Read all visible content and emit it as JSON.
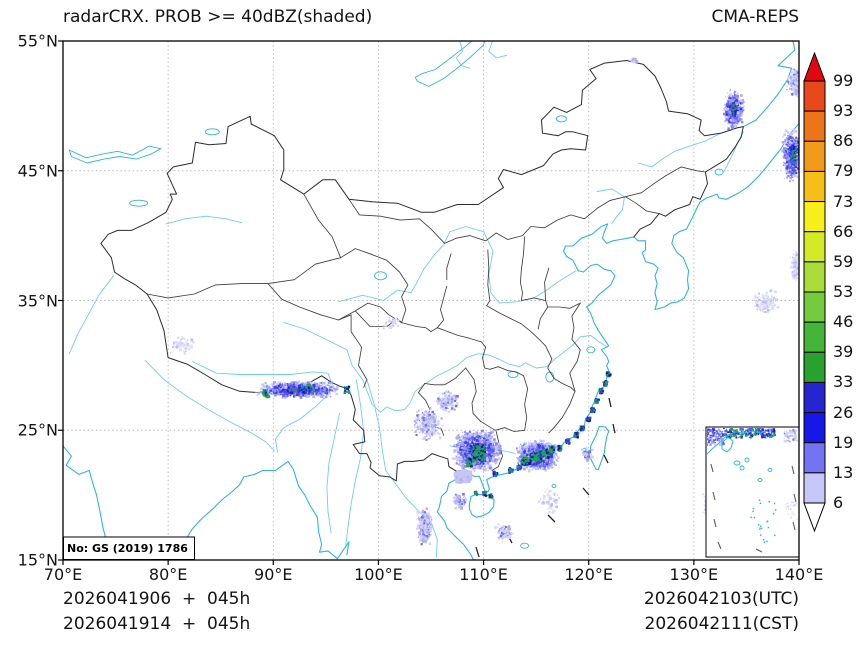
{
  "header": {
    "title": "radarCRX. PROB >= 40dBZ(shaded)",
    "model": "CMA-REPS"
  },
  "axes": {
    "x_ticks": [
      {
        "label": "70°E",
        "lon": 70
      },
      {
        "label": "80°E",
        "lon": 80
      },
      {
        "label": "90°E",
        "lon": 90
      },
      {
        "label": "100°E",
        "lon": 100
      },
      {
        "label": "110°E",
        "lon": 110
      },
      {
        "label": "120°E",
        "lon": 120
      },
      {
        "label": "130°E",
        "lon": 130
      },
      {
        "label": "140°E",
        "lon": 140
      }
    ],
    "y_ticks": [
      {
        "label": "15°N",
        "lat": 15
      },
      {
        "label": "25°N",
        "lat": 25
      },
      {
        "label": "35°N",
        "lat": 35
      },
      {
        "label": "45°N",
        "lat": 45
      },
      {
        "label": "55°N",
        "lat": 55
      }
    ],
    "grid_lons": [
      80,
      90,
      100,
      110,
      120,
      130
    ],
    "grid_lats": [
      25,
      35,
      45
    ],
    "lon_range": [
      70,
      140
    ],
    "lat_range": [
      15,
      55
    ]
  },
  "map_note": "No: GS (2019) 1786",
  "footer": {
    "left_line1": "2026041906  +  045h",
    "left_line2": "2026041914  +  045h",
    "right_line1": "2026042103(UTC)",
    "right_line2": "2026042111(CST)"
  },
  "colorbar": {
    "tick_labels": [
      "99",
      "93",
      "86",
      "79",
      "73",
      "66",
      "59",
      "53",
      "46",
      "39",
      "33",
      "26",
      "19",
      "13",
      "6"
    ],
    "band_colors_top_to_bottom": [
      "#e8491c",
      "#ee7418",
      "#f29b1b",
      "#f6bf17",
      "#f8ee1a",
      "#d4ea28",
      "#a9dc38",
      "#74cb3e",
      "#43b639",
      "#28a22c",
      "#2626d0",
      "#1717e8",
      "#7474f2",
      "#c7c7f8"
    ],
    "over_color": "#e20612",
    "under_color": "#ffffff"
  },
  "colors": {
    "frame": "#000000",
    "national_border": "#2b2b2b",
    "province_border": "#3d3d3d",
    "grid": "#b8b8b8",
    "coast": "#2eb4e4",
    "river": "#6fcdf1"
  },
  "chart_data": {
    "type": "heatmap",
    "title": "radarCRX. PROB >= 40dBZ(shaded)",
    "model": "CMA-REPS",
    "variable": "Probability of radar composite reflectivity >= 40 dBZ (%, shaded)",
    "init_time_utc": "2026041906",
    "init_time_cst": "2026041914",
    "lead_time": "045h",
    "valid_time_utc": "2026042103(UTC)",
    "valid_time_cst": "2026042111(CST)",
    "lon_range": [
      70,
      140
    ],
    "lat_range": [
      15,
      55
    ],
    "prob_levels": [
      6,
      13,
      19,
      26,
      33,
      39,
      46,
      53,
      59,
      66,
      73,
      79,
      86,
      93,
      99
    ],
    "regions": [
      {
        "name": "guangxi-cluster",
        "lon": 109.3,
        "lat": 23.5,
        "rlon": 2.4,
        "rlat": 1.7,
        "n": 3200,
        "style": "dense"
      },
      {
        "name": "guangdong-coastal-cluster",
        "lon": 115.0,
        "lat": 23.1,
        "rlon": 2.2,
        "rlat": 1.3,
        "n": 2200,
        "style": "dense"
      },
      {
        "name": "leizhou-lavender-blob",
        "lon": 107.9,
        "lat": 21.6,
        "rlon": 0.9,
        "rlat": 0.5,
        "n": 600,
        "style": "solid-light"
      },
      {
        "name": "himalaya-band",
        "lon": 92.3,
        "lat": 28.2,
        "rlon": 4.6,
        "rlat": 0.75,
        "n": 950,
        "style": "dense"
      },
      {
        "name": "yunnan-scatter",
        "lon": 104.6,
        "lat": 25.6,
        "rlon": 1.7,
        "rlat": 1.5,
        "n": 260,
        "style": "sparse"
      },
      {
        "name": "guizhou-scatter",
        "lon": 106.4,
        "lat": 27.3,
        "rlon": 1.3,
        "rlat": 1.0,
        "n": 150,
        "style": "sparse"
      },
      {
        "name": "laos-scatter",
        "lon": 104.3,
        "lat": 17.6,
        "rlon": 0.9,
        "rlat": 1.7,
        "n": 300,
        "style": "sparse"
      },
      {
        "name": "ne-amur-cluster",
        "lon": 133.7,
        "lat": 49.8,
        "rlon": 1.1,
        "rlat": 1.7,
        "n": 620,
        "style": "dense"
      },
      {
        "name": "ne-coast-cluster",
        "lon": 139.3,
        "lat": 46.3,
        "rlon": 1.2,
        "rlat": 2.3,
        "n": 520,
        "style": "dense"
      },
      {
        "name": "ne-corner-scatter",
        "lon": 139.6,
        "lat": 51.9,
        "rlon": 1.0,
        "rlat": 1.3,
        "n": 260,
        "style": "sparse"
      },
      {
        "name": "sea-of-japan-wisp",
        "lon": 136.8,
        "lat": 34.9,
        "rlon": 1.6,
        "rlat": 1.1,
        "n": 120,
        "style": "faint"
      },
      {
        "name": "japan-edge-wisp",
        "lon": 139.6,
        "lat": 37.8,
        "rlon": 0.6,
        "rlat": 1.6,
        "n": 90,
        "style": "faint"
      },
      {
        "name": "tonkin-dots",
        "lon": 107.6,
        "lat": 19.6,
        "rlon": 0.8,
        "rlat": 0.7,
        "n": 90,
        "style": "sparse"
      },
      {
        "name": "paracel-dots",
        "lon": 111.9,
        "lat": 17.2,
        "rlon": 1.0,
        "rlat": 0.8,
        "n": 90,
        "style": "sparse"
      },
      {
        "name": "west-tibet-specks",
        "lon": 81.3,
        "lat": 31.6,
        "rlon": 1.5,
        "rlat": 0.9,
        "n": 60,
        "style": "faint"
      },
      {
        "name": "qinghai-specks",
        "lon": 101.2,
        "lat": 33.4,
        "rlon": 1.0,
        "rlat": 0.7,
        "n": 40,
        "style": "faint"
      },
      {
        "name": "taiwan-strait-specks",
        "lon": 119.8,
        "lat": 23.2,
        "rlon": 0.7,
        "rlat": 0.7,
        "n": 50,
        "style": "sparse"
      },
      {
        "name": "south-sea-specks",
        "lon": 116.2,
        "lat": 19.6,
        "rlon": 1.2,
        "rlat": 1.2,
        "n": 60,
        "style": "faint"
      },
      {
        "name": "philippine-sea-specks",
        "lon": 131.2,
        "lat": 19.5,
        "rlon": 0.6,
        "rlat": 1.3,
        "n": 60,
        "style": "faint"
      },
      {
        "name": "amur-tiny-dot",
        "lon": 124.2,
        "lat": 53.6,
        "rlon": 0.3,
        "rlat": 0.3,
        "n": 15,
        "style": "sparse"
      }
    ],
    "coast_streaks": [
      {
        "name": "se-coast-echo",
        "n_per_pt": 35,
        "r": 0.18,
        "pts": [
          [
            111.0,
            21.7
          ],
          [
            112.5,
            22.0
          ],
          [
            113.3,
            22.2
          ],
          [
            114.2,
            22.6
          ],
          [
            115.2,
            22.8
          ],
          [
            116.2,
            23.2
          ],
          [
            117.1,
            23.7
          ],
          [
            117.9,
            24.2
          ],
          [
            118.7,
            24.7
          ],
          [
            119.3,
            25.2
          ],
          [
            119.9,
            25.9
          ],
          [
            120.3,
            26.6
          ],
          [
            120.7,
            27.3
          ],
          [
            121.1,
            28.1
          ],
          [
            121.5,
            28.7
          ],
          [
            121.8,
            29.4
          ]
        ]
      },
      {
        "name": "hainan-north-echo",
        "n_per_pt": 18,
        "r": 0.15,
        "pts": [
          [
            109.2,
            20.2
          ],
          [
            110.0,
            20.2
          ],
          [
            110.6,
            20.0
          ]
        ]
      }
    ],
    "cores": [
      {
        "lon": 109.5,
        "lat": 23.3,
        "r": 0.55,
        "n": 160
      },
      {
        "lon": 108.6,
        "lat": 22.6,
        "r": 0.3,
        "n": 60
      },
      {
        "lon": 113.8,
        "lat": 22.7,
        "r": 0.3,
        "n": 50
      },
      {
        "lon": 114.8,
        "lat": 23.0,
        "r": 0.3,
        "n": 50
      },
      {
        "lon": 115.8,
        "lat": 23.3,
        "r": 0.3,
        "n": 50
      },
      {
        "lon": 116.4,
        "lat": 23.6,
        "r": 0.25,
        "n": 40
      },
      {
        "lon": 89.2,
        "lat": 27.9,
        "r": 0.3,
        "n": 30
      },
      {
        "lon": 96.9,
        "lat": 28.2,
        "r": 0.25,
        "n": 25
      },
      {
        "lon": 93.2,
        "lat": 28.4,
        "r": 0.2,
        "n": 15
      }
    ]
  }
}
